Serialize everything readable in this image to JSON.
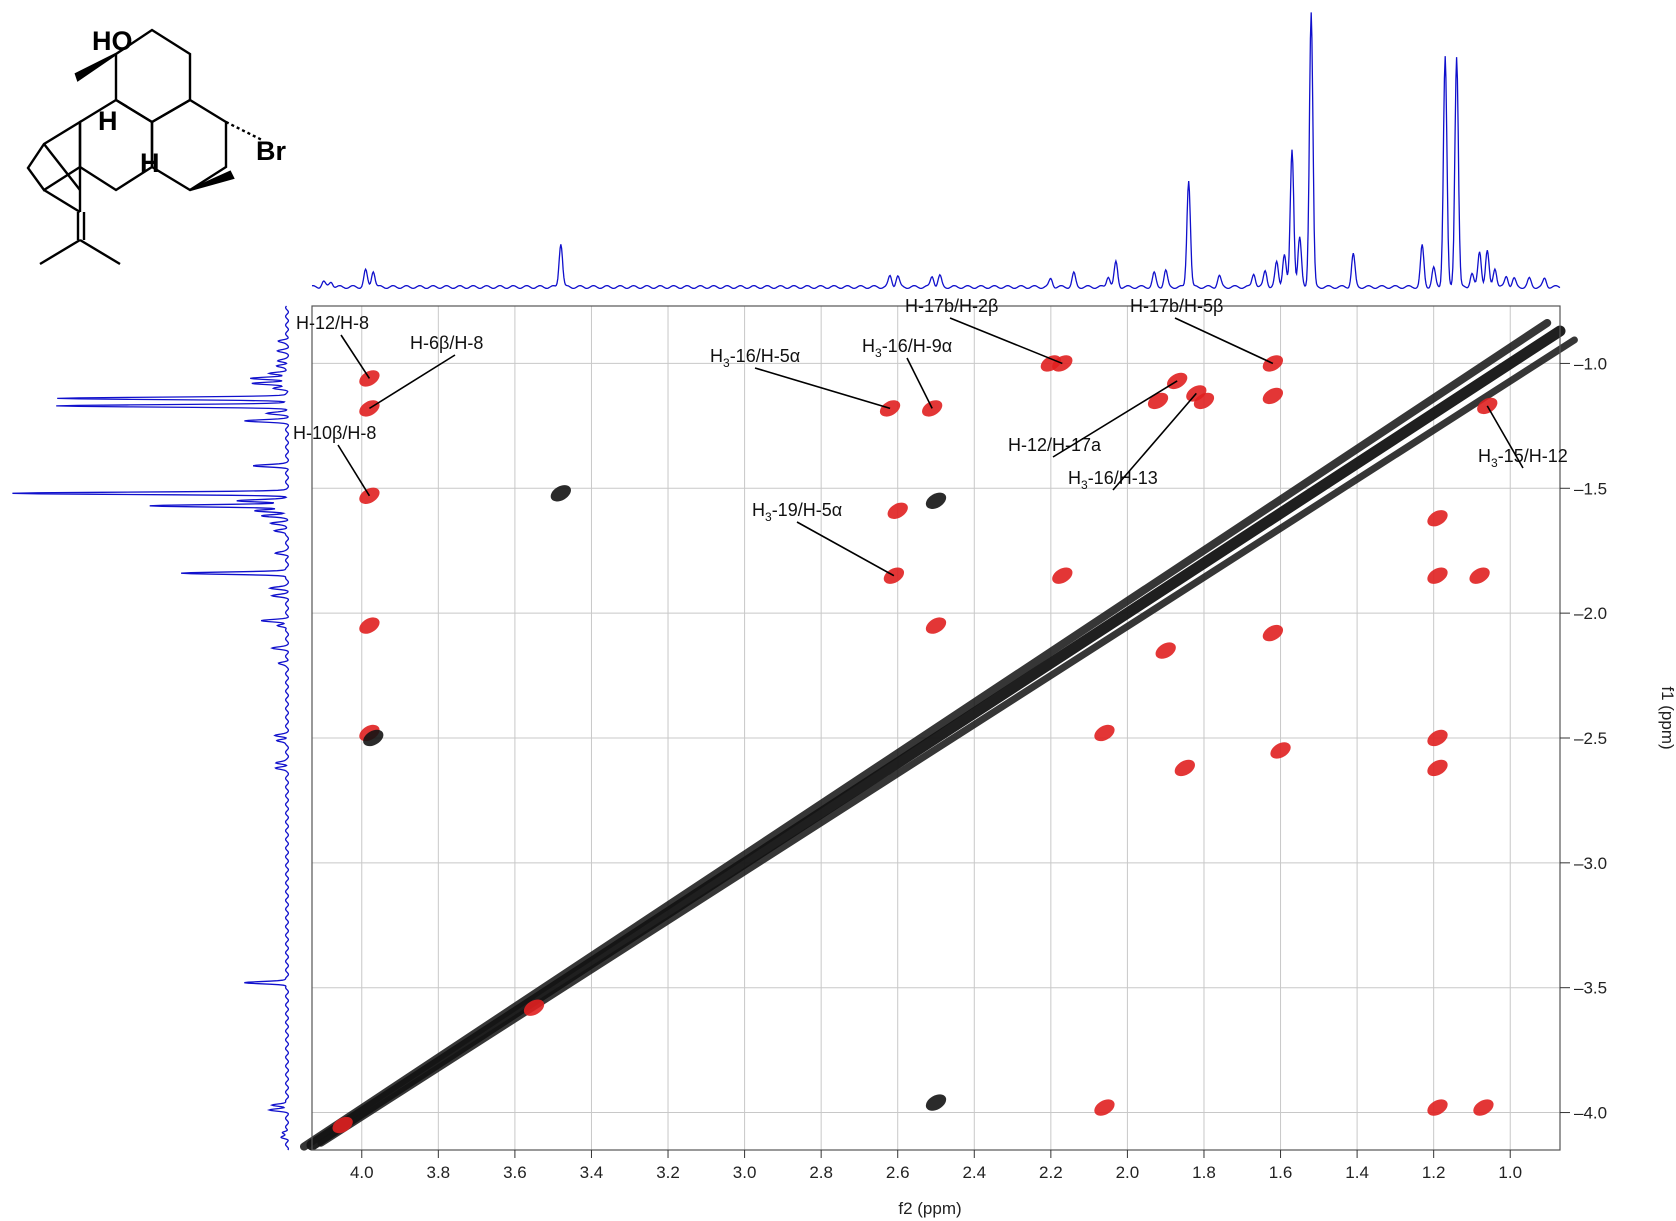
{
  "colors": {
    "positive_contour": "#e02020",
    "negative_contour": "#141414",
    "projection_1d": "#1010cc",
    "grid": "#c8c8c8",
    "frame": "#555555"
  },
  "structure": {
    "labels": {
      "hydroxyl": "HO",
      "bromo": "Br",
      "h_a": "H",
      "h_b": "H"
    }
  },
  "chart_data": {
    "type": "2D NMR contour plot with 1D projections",
    "xlabel": "f2 (ppm)",
    "ylabel": "f1 (ppm)",
    "xlim": [
      4.13,
      0.87
    ],
    "ylim": [
      0.77,
      4.15
    ],
    "x_ticks": [
      "4.0",
      "3.8",
      "3.6",
      "3.4",
      "3.2",
      "3.0",
      "2.8",
      "2.6",
      "2.4",
      "2.2",
      "2.0",
      "1.8",
      "1.6",
      "1.4",
      "1.2",
      "1.0"
    ],
    "y_ticks": [
      "1.0",
      "1.5",
      "2.0",
      "2.5",
      "3.0",
      "3.5",
      "4.0"
    ],
    "grid": true,
    "diagonal": {
      "from": [
        4.13,
        4.13
      ],
      "to": [
        0.87,
        0.87
      ]
    },
    "projection_peaks": [
      {
        "ppm": 4.1,
        "height": 0.02
      },
      {
        "ppm": 4.08,
        "height": 0.02
      },
      {
        "ppm": 3.99,
        "height": 0.06
      },
      {
        "ppm": 3.97,
        "height": 0.06
      },
      {
        "ppm": 3.48,
        "height": 0.16
      },
      {
        "ppm": 2.62,
        "height": 0.04
      },
      {
        "ppm": 2.6,
        "height": 0.04
      },
      {
        "ppm": 2.51,
        "height": 0.04
      },
      {
        "ppm": 2.49,
        "height": 0.04
      },
      {
        "ppm": 2.2,
        "height": 0.03
      },
      {
        "ppm": 2.14,
        "height": 0.05
      },
      {
        "ppm": 2.05,
        "height": 0.04
      },
      {
        "ppm": 2.03,
        "height": 0.09
      },
      {
        "ppm": 1.93,
        "height": 0.05
      },
      {
        "ppm": 1.9,
        "height": 0.06
      },
      {
        "ppm": 1.84,
        "height": 0.39
      },
      {
        "ppm": 1.76,
        "height": 0.04
      },
      {
        "ppm": 1.67,
        "height": 0.05
      },
      {
        "ppm": 1.64,
        "height": 0.06
      },
      {
        "ppm": 1.61,
        "height": 0.09
      },
      {
        "ppm": 1.59,
        "height": 0.12
      },
      {
        "ppm": 1.57,
        "height": 0.5
      },
      {
        "ppm": 1.55,
        "height": 0.18
      },
      {
        "ppm": 1.52,
        "height": 1.0
      },
      {
        "ppm": 1.41,
        "height": 0.12
      },
      {
        "ppm": 1.23,
        "height": 0.15
      },
      {
        "ppm": 1.2,
        "height": 0.07
      },
      {
        "ppm": 1.17,
        "height": 0.84
      },
      {
        "ppm": 1.14,
        "height": 0.84
      },
      {
        "ppm": 1.1,
        "height": 0.05
      },
      {
        "ppm": 1.08,
        "height": 0.13
      },
      {
        "ppm": 1.06,
        "height": 0.13
      },
      {
        "ppm": 1.04,
        "height": 0.07
      },
      {
        "ppm": 1.01,
        "height": 0.04
      },
      {
        "ppm": 0.99,
        "height": 0.03
      },
      {
        "ppm": 0.95,
        "height": 0.03
      },
      {
        "ppm": 0.91,
        "height": 0.03
      }
    ],
    "cross_peaks": [
      {
        "x": 3.98,
        "y": 1.06,
        "sign": "pos"
      },
      {
        "x": 3.98,
        "y": 1.18,
        "sign": "pos"
      },
      {
        "x": 3.98,
        "y": 1.53,
        "sign": "pos"
      },
      {
        "x": 3.98,
        "y": 2.05,
        "sign": "pos"
      },
      {
        "x": 3.98,
        "y": 2.48,
        "sign": "pos"
      },
      {
        "x": 3.97,
        "y": 2.5,
        "sign": "neg"
      },
      {
        "x": 3.48,
        "y": 1.52,
        "sign": "neg"
      },
      {
        "x": 2.62,
        "y": 1.18,
        "sign": "pos"
      },
      {
        "x": 2.51,
        "y": 1.18,
        "sign": "pos"
      },
      {
        "x": 2.6,
        "y": 1.59,
        "sign": "pos"
      },
      {
        "x": 2.5,
        "y": 1.55,
        "sign": "neg"
      },
      {
        "x": 2.61,
        "y": 1.85,
        "sign": "pos"
      },
      {
        "x": 2.5,
        "y": 2.05,
        "sign": "pos"
      },
      {
        "x": 2.2,
        "y": 1.0,
        "sign": "pos"
      },
      {
        "x": 2.17,
        "y": 1.0,
        "sign": "pos"
      },
      {
        "x": 2.17,
        "y": 1.85,
        "sign": "pos"
      },
      {
        "x": 2.06,
        "y": 2.48,
        "sign": "pos"
      },
      {
        "x": 1.87,
        "y": 1.07,
        "sign": "pos"
      },
      {
        "x": 1.82,
        "y": 1.12,
        "sign": "pos"
      },
      {
        "x": 1.92,
        "y": 1.15,
        "sign": "pos"
      },
      {
        "x": 1.8,
        "y": 1.15,
        "sign": "pos"
      },
      {
        "x": 1.85,
        "y": 2.62,
        "sign": "pos"
      },
      {
        "x": 1.9,
        "y": 2.15,
        "sign": "pos"
      },
      {
        "x": 1.62,
        "y": 1.13,
        "sign": "pos"
      },
      {
        "x": 1.62,
        "y": 1.0,
        "sign": "pos"
      },
      {
        "x": 1.6,
        "y": 2.55,
        "sign": "pos"
      },
      {
        "x": 1.62,
        "y": 2.08,
        "sign": "pos"
      },
      {
        "x": 1.19,
        "y": 1.62,
        "sign": "pos"
      },
      {
        "x": 1.19,
        "y": 1.85,
        "sign": "pos"
      },
      {
        "x": 1.19,
        "y": 2.5,
        "sign": "pos"
      },
      {
        "x": 1.19,
        "y": 2.62,
        "sign": "pos"
      },
      {
        "x": 1.08,
        "y": 1.85,
        "sign": "pos"
      },
      {
        "x": 1.06,
        "y": 1.17,
        "sign": "pos"
      },
      {
        "x": 1.19,
        "y": 3.98,
        "sign": "pos"
      },
      {
        "x": 1.07,
        "y": 3.98,
        "sign": "pos"
      },
      {
        "x": 2.06,
        "y": 3.98,
        "sign": "pos"
      },
      {
        "x": 2.5,
        "y": 3.96,
        "sign": "neg"
      },
      {
        "x": 3.55,
        "y": 3.58,
        "sign": "pos"
      },
      {
        "x": 4.05,
        "y": 4.05,
        "sign": "pos"
      }
    ],
    "annotations": [
      {
        "main": "H-12/H-8",
        "pre": "",
        "sub": ""
      },
      {
        "main": "",
        "pre": "H-6β/H-8",
        "sub": ""
      },
      {
        "main": "H-10β/H-8",
        "pre": "",
        "sub": ""
      },
      {
        "main": "-16/H-5α",
        "pre": "H",
        "sub": "3"
      },
      {
        "main": "-16/H-9α",
        "pre": "H",
        "sub": "3"
      },
      {
        "main": "H-17b/H-2β",
        "pre": "",
        "sub": ""
      },
      {
        "main": "H-17b/H-5β",
        "pre": "",
        "sub": ""
      },
      {
        "main": "H-12/H-17a",
        "pre": "",
        "sub": ""
      },
      {
        "main": "-16/H-13",
        "pre": "H",
        "sub": "3"
      },
      {
        "main": "-15/H-12",
        "pre": "H",
        "sub": "3"
      },
      {
        "main": "-19/H-5α",
        "pre": "H",
        "sub": "3"
      }
    ]
  }
}
